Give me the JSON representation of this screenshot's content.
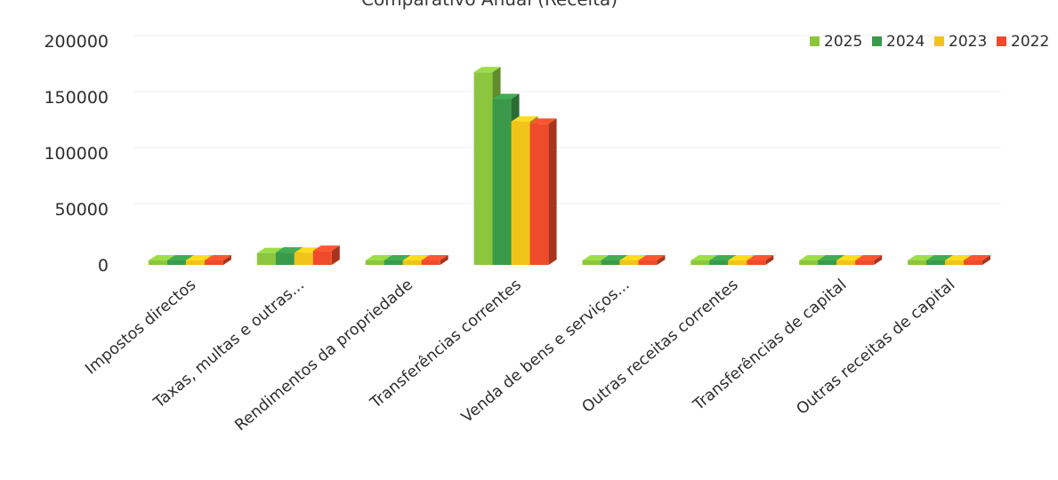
{
  "chart_data": {
    "type": "bar",
    "title": "Comparativo Anual (Receita)",
    "xlabel": "",
    "ylabel": "",
    "ylim": [
      0,
      200000
    ],
    "yticks": [
      0,
      50000,
      100000,
      150000,
      200000
    ],
    "ytick_labels": [
      "0",
      "50000",
      "100000",
      "150000",
      "200000"
    ],
    "grid": true,
    "legend_position": "top-right",
    "style": "3d-clustered-column",
    "categories": [
      "Impostos directos",
      "Taxas, multas e outras...",
      "Rendimentos da propriedade",
      "Transferências correntes",
      "Venda de bens e serviços...",
      "Outras receitas correntes",
      "Transferências de capital",
      "Outras receitas de capital"
    ],
    "series": [
      {
        "name": "2025",
        "color": "#8cc63f",
        "values": [
          3000,
          10500,
          200,
          172000,
          1500,
          300,
          100,
          50
        ]
      },
      {
        "name": "2024",
        "color": "#3a9a4a",
        "values": [
          3200,
          11000,
          250,
          148000,
          1600,
          350,
          100,
          50
        ]
      },
      {
        "name": "2023",
        "color": "#f0c419",
        "values": [
          3100,
          10800,
          220,
          128000,
          1550,
          320,
          100,
          50
        ]
      },
      {
        "name": "2022",
        "color": "#ee4b2b",
        "values": [
          2900,
          12500,
          200,
          126000,
          1400,
          300,
          100,
          50
        ]
      }
    ]
  }
}
